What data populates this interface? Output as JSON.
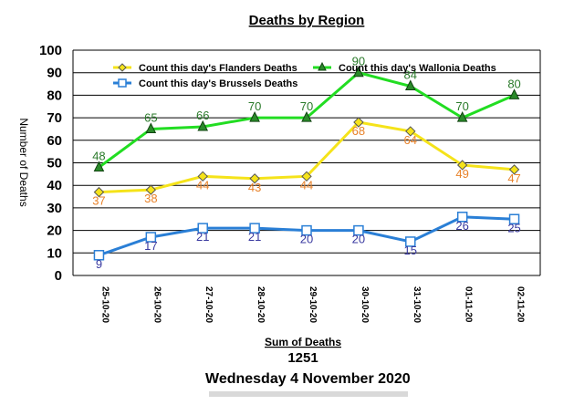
{
  "chart_data": {
    "type": "line",
    "title": "Deaths by Region",
    "xlabel": "",
    "ylabel": "Number of Deaths",
    "ylim": [
      0,
      100
    ],
    "yticks": [
      0,
      10,
      20,
      30,
      40,
      50,
      60,
      70,
      80,
      90,
      100
    ],
    "grid": true,
    "legend": "top-left",
    "categories": [
      "25-10-20",
      "26-10-20",
      "27-10-20",
      "28-10-20",
      "29-10-20",
      "30-10-20",
      "31-10-20",
      "01-11-20",
      "02-11-20"
    ],
    "series": [
      {
        "name": "Count this day's Flanders Deaths",
        "color": "#f5e31a",
        "label_color": "#e8822a",
        "marker": "diamond",
        "values": [
          37,
          38,
          44,
          43,
          44,
          68,
          64,
          49,
          47
        ]
      },
      {
        "name": "Count this day's Wallonia Deaths",
        "color": "#22dd22",
        "label_color": "#2a7a2a",
        "marker": "triangle",
        "values": [
          48,
          65,
          66,
          70,
          70,
          90,
          84,
          70,
          80
        ]
      },
      {
        "name": "Count this day's Brussels Deaths",
        "color": "#2a7fd6",
        "label_color": "#3a3aa0",
        "marker": "square",
        "values": [
          9,
          17,
          21,
          21,
          20,
          20,
          15,
          26,
          25
        ]
      }
    ]
  },
  "summary": {
    "sum_label": "Sum of Deaths",
    "sum_value": "1251",
    "date_text": "Wednesday 4 November 2020"
  }
}
